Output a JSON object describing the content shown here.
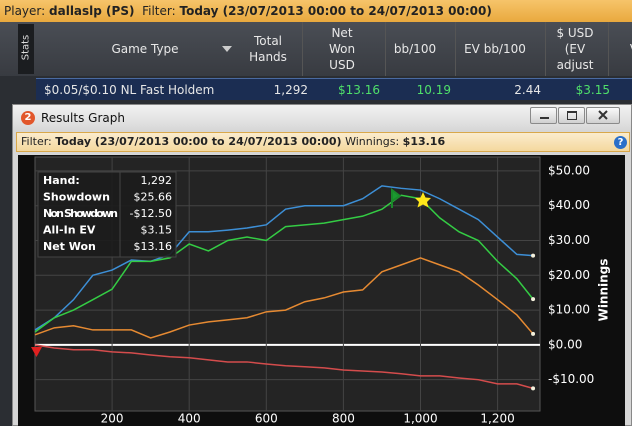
{
  "top_bar": {
    "player_label": "Player:",
    "player": "dallaslp (PS)",
    "filter_label": "Filter:",
    "filter": "Today (23/07/2013 00:00 to 24/07/2013 00:00)"
  },
  "stats_tab": "Stats",
  "table": {
    "columns": [
      "Game Type",
      "Total Hands",
      "Net Won USD",
      "bb/100",
      "EV bb/100",
      "$ USD (EV adjust",
      "V"
    ],
    "rows": [
      [
        "$0.05/$0.10 NL Fast Holdem",
        "1,292",
        "$13.16",
        "10.19",
        "2.44",
        "$3.15"
      ]
    ]
  },
  "window": {
    "number": "2",
    "title": "Results Graph"
  },
  "filter_bar": {
    "filter_label": "Filter:",
    "filter": "Today (23/07/2013 00:00 to 24/07/2013 00:00)",
    "winnings_label": "Winnings:",
    "winnings": "$13.16",
    "help": "?"
  },
  "stats_box": {
    "rows": [
      [
        "Hand:",
        "1,292"
      ],
      [
        "Showdown",
        "$25.66"
      ],
      [
        "Non Showdown",
        "-$12.50"
      ],
      [
        "All-In EV",
        "$3.15"
      ],
      [
        "Net Won",
        "$13.16"
      ]
    ]
  },
  "chart_data": {
    "type": "line",
    "ylabel": "Winnings",
    "x": [
      0,
      50,
      100,
      150,
      200,
      250,
      300,
      350,
      400,
      450,
      500,
      550,
      600,
      650,
      700,
      750,
      800,
      850,
      900,
      950,
      1000,
      1050,
      1100,
      1150,
      1200,
      1250,
      1292
    ],
    "series": [
      {
        "color": "#3d8fd6",
        "values": [
          4.3,
          7.8,
          13,
          20,
          21.5,
          24.4,
          24,
          26,
          32.5,
          32.5,
          33,
          33.6,
          34.5,
          39,
          40,
          40,
          40,
          42,
          45.7,
          45,
          44.5,
          42,
          39,
          36,
          31,
          26,
          25.66
        ]
      },
      {
        "color": "#e68a32",
        "values": [
          2.9,
          4.9,
          5.5,
          4.3,
          4.3,
          4.3,
          2,
          3.7,
          5.7,
          6.6,
          7.2,
          7.8,
          9.5,
          10,
          12.4,
          13.5,
          15.2,
          15.8,
          21,
          23,
          25,
          23,
          21,
          17.2,
          13,
          8.6,
          3.15
        ]
      },
      {
        "color": "#d44c4c",
        "values": [
          0,
          -0.9,
          -1.4,
          -1.4,
          -2,
          -2.3,
          -2.9,
          -3.4,
          -3.7,
          -4.3,
          -4.9,
          -4.9,
          -5.5,
          -6,
          -6.3,
          -6.6,
          -7.2,
          -7.5,
          -7.8,
          -8.3,
          -8.9,
          -8.9,
          -9.5,
          -10,
          -11.2,
          -11.2,
          -12.5
        ]
      },
      {
        "color": "#34cc44",
        "values": [
          3.7,
          7.8,
          10,
          13,
          16,
          24,
          24,
          25,
          29,
          27,
          30,
          31,
          30,
          34,
          34.5,
          35,
          36,
          37,
          39,
          43,
          42,
          36.5,
          32.5,
          30,
          24,
          19,
          13.16
        ]
      }
    ],
    "xlim": [
      0,
      1310
    ],
    "ylim": [
      -19,
      54
    ],
    "xticks": [
      200,
      400,
      600,
      800,
      {
        "value": 1000,
        "label": "1,000"
      },
      {
        "value": 1200,
        "label": "1,200"
      }
    ],
    "yticks": [
      {
        "value": 50,
        "label": "$50.00"
      },
      {
        "value": 40,
        "label": "$40.00"
      },
      {
        "value": 30,
        "label": "$30.00"
      },
      {
        "value": 20,
        "label": "$20.00"
      },
      {
        "value": 10,
        "label": "$10.00"
      },
      {
        "value": 0,
        "label": "$0.00"
      },
      {
        "value": -10,
        "label": "-$10.00"
      }
    ],
    "grid": true
  }
}
